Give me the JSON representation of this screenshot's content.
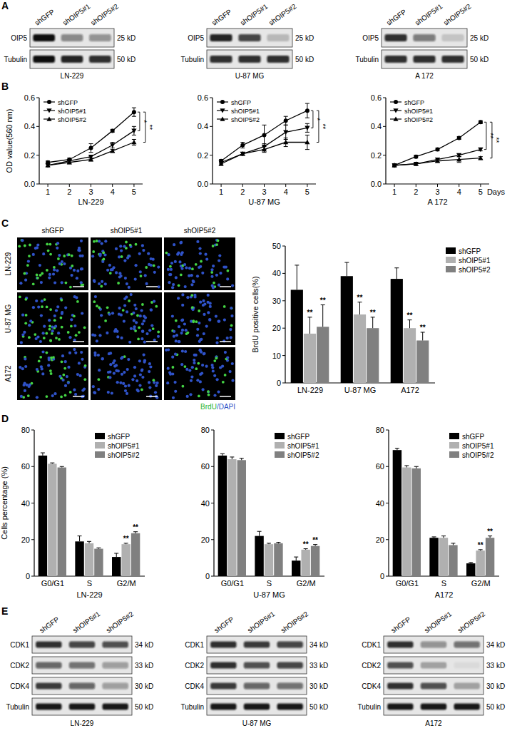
{
  "panel_labels": [
    "A",
    "B",
    "C",
    "D",
    "E"
  ],
  "panel_a": {
    "lanes": [
      "shGFP",
      "shOIP5#1",
      "shOIP5#2"
    ],
    "blots": [
      {
        "cell_line": "LN-229",
        "rows": [
          {
            "protein": "OIP5",
            "size": "25 kD",
            "intensity": [
              1,
              0.45,
              0.4
            ]
          },
          {
            "protein": "Tubulin",
            "size": "50 kD",
            "intensity": [
              1,
              0.9,
              0.85
            ]
          }
        ]
      },
      {
        "cell_line": "U-87 MG",
        "rows": [
          {
            "protein": "OIP5",
            "size": "25 kD",
            "intensity": [
              0.9,
              0.75,
              0.2
            ]
          },
          {
            "protein": "Tubulin",
            "size": "50 kD",
            "intensity": [
              0.85,
              0.85,
              0.85
            ]
          }
        ]
      },
      {
        "cell_line": "A 172",
        "rows": [
          {
            "protein": "OIP5",
            "size": "25 kD",
            "intensity": [
              0.85,
              0.5,
              0.15
            ]
          },
          {
            "protein": "Tubulin",
            "size": "50 kD",
            "intensity": [
              0.85,
              0.85,
              0.85
            ]
          }
        ]
      }
    ]
  },
  "panel_c_images": {
    "lanes": [
      "shGFP",
      "shOIP5#1",
      "shOIP5#2"
    ],
    "cell_lines": [
      "LN-229",
      "U-87 MG",
      "A172"
    ],
    "stain_label_parts": [
      "BrdU",
      "/DAPI"
    ]
  },
  "panel_e": {
    "lanes": [
      "shGFP",
      "shOIP5#1",
      "shOIP5#2"
    ],
    "blots": [
      {
        "cell_line": "LN-229",
        "rows": [
          {
            "protein": "CDK1",
            "size": "34 kD",
            "intensity": [
              0.85,
              0.75,
              0.7
            ]
          },
          {
            "protein": "CDK2",
            "size": "33 kD",
            "intensity": [
              0.6,
              0.55,
              0.35
            ]
          },
          {
            "protein": "CDK4",
            "size": "30 kD",
            "intensity": [
              0.8,
              0.6,
              0.35
            ]
          },
          {
            "protein": "Tubulin",
            "size": "50 kD",
            "intensity": [
              0.95,
              0.95,
              0.95
            ]
          }
        ]
      },
      {
        "cell_line": "U-87 MG",
        "rows": [
          {
            "protein": "CDK1",
            "size": "34 kD",
            "intensity": [
              0.85,
              0.8,
              0.75
            ]
          },
          {
            "protein": "CDK2",
            "size": "33 kD",
            "intensity": [
              0.85,
              0.7,
              0.75
            ]
          },
          {
            "protein": "CDK4",
            "size": "30 kD",
            "intensity": [
              0.8,
              0.6,
              0.55
            ]
          },
          {
            "protein": "Tubulin",
            "size": "50 kD",
            "intensity": [
              0.95,
              0.95,
              0.95
            ]
          }
        ]
      },
      {
        "cell_line": "A172",
        "rows": [
          {
            "protein": "CDK1",
            "size": "34 kD",
            "intensity": [
              0.85,
              0.4,
              0.55
            ]
          },
          {
            "protein": "CDK2",
            "size": "33 kD",
            "intensity": [
              0.7,
              0.3,
              0.05
            ]
          },
          {
            "protein": "CDK4",
            "size": "30 kD",
            "intensity": [
              0.85,
              0.7,
              0.3
            ]
          },
          {
            "protein": "Tubulin",
            "size": "50 kD",
            "intensity": [
              0.95,
              0.95,
              0.95
            ]
          }
        ]
      }
    ]
  },
  "chart_data": [
    {
      "type": "line",
      "y_label": "OD value(560 nm)",
      "x_label": "LN-229",
      "x": [
        1,
        2,
        3,
        4,
        5
      ],
      "xlim": [
        0.6,
        5.4
      ],
      "xticks": [
        1,
        2,
        3,
        4,
        5
      ],
      "ylim": [
        0,
        0.6
      ],
      "yticks": [
        {
          "value": 0,
          "label": "0.0"
        },
        {
          "value": 0.2,
          "label": "0.2"
        },
        {
          "value": 0.4,
          "label": "0.4"
        },
        {
          "value": 0.6,
          "label": "0.6"
        }
      ],
      "grid": false,
      "legend": "upper left",
      "series": [
        {
          "name": "shGFP",
          "color": "#000000",
          "marker": "circle",
          "values": [
            0.15,
            0.17,
            0.25,
            0.37,
            0.5
          ],
          "errors": [
            0.01,
            0.01,
            0.03,
            0.01,
            0.03
          ]
        },
        {
          "name": "shOIP5#1",
          "color": "#000000",
          "marker": "triangle-down",
          "values": [
            0.13,
            0.16,
            0.19,
            0.27,
            0.37
          ],
          "errors": [
            0.01,
            0.01,
            0.01,
            0.02,
            0.03
          ]
        },
        {
          "name": "shOIP5#2",
          "color": "#000000",
          "marker": "triangle-up",
          "values": [
            0.13,
            0.15,
            0.17,
            0.23,
            0.29
          ],
          "errors": [
            0.01,
            0.01,
            0.01,
            0.01,
            0.02
          ]
        }
      ],
      "significance": [
        {
          "between": [
            "shGFP",
            "shOIP5#1"
          ],
          "label": "*"
        },
        {
          "between": [
            "shGFP",
            "shOIP5#2"
          ],
          "label": "**"
        }
      ]
    },
    {
      "type": "line",
      "x_label": "U-87 MG",
      "x": [
        1,
        2,
        3,
        4,
        5
      ],
      "xlim": [
        0.6,
        5.4
      ],
      "xticks": [
        1,
        2,
        3,
        4,
        5
      ],
      "ylim": [
        0,
        0.6
      ],
      "yticks": [
        {
          "value": 0,
          "label": "0.0"
        },
        {
          "value": 0.2,
          "label": "0.2"
        },
        {
          "value": 0.4,
          "label": "0.4"
        },
        {
          "value": 0.6,
          "label": "0.6"
        }
      ],
      "grid": false,
      "legend": "upper left",
      "series": [
        {
          "name": "shGFP",
          "color": "#000000",
          "marker": "circle",
          "values": [
            0.16,
            0.27,
            0.34,
            0.44,
            0.51
          ],
          "errors": [
            0.01,
            0.02,
            0.07,
            0.03,
            0.05
          ]
        },
        {
          "name": "shOIP5#1",
          "color": "#000000",
          "marker": "triangle-down",
          "values": [
            0.15,
            0.21,
            0.26,
            0.36,
            0.39
          ],
          "errors": [
            0.01,
            0.01,
            0.02,
            0.05,
            0.03
          ]
        },
        {
          "name": "shOIP5#2",
          "color": "#000000",
          "marker": "triangle-up",
          "values": [
            0.14,
            0.21,
            0.24,
            0.29,
            0.29
          ],
          "errors": [
            0.01,
            0.01,
            0.02,
            0.03,
            0.05
          ]
        }
      ],
      "significance": [
        {
          "between": [
            "shGFP",
            "shOIP5#1"
          ],
          "label": "*"
        },
        {
          "between": [
            "shGFP",
            "shOIP5#2"
          ],
          "label": "**"
        }
      ]
    },
    {
      "type": "line",
      "x_label": "A 172",
      "annotations": [
        "Days"
      ],
      "x": [
        1,
        2,
        3,
        4,
        5
      ],
      "xlim": [
        0.6,
        5.4
      ],
      "xticks": [
        1,
        2,
        3,
        4,
        5
      ],
      "ylim": [
        0,
        0.6
      ],
      "yticks": [
        {
          "value": 0,
          "label": "0.0"
        },
        {
          "value": 0.2,
          "label": "0.2"
        },
        {
          "value": 0.4,
          "label": "0.4"
        },
        {
          "value": 0.6,
          "label": "0.6"
        }
      ],
      "grid": false,
      "legend": "upper left",
      "series": [
        {
          "name": "shGFP",
          "color": "#000000",
          "marker": "circle",
          "values": [
            0.13,
            0.19,
            0.24,
            0.32,
            0.43
          ],
          "errors": [
            0.01,
            0.01,
            0.01,
            0.01,
            0.01
          ]
        },
        {
          "name": "shOIP5#1",
          "color": "#000000",
          "marker": "triangle-down",
          "values": [
            0.13,
            0.14,
            0.17,
            0.2,
            0.24
          ],
          "errors": [
            0.01,
            0.01,
            0.01,
            0.01,
            0.01
          ]
        },
        {
          "name": "shOIP5#2",
          "color": "#000000",
          "marker": "triangle-up",
          "values": [
            0.13,
            0.14,
            0.16,
            0.17,
            0.18
          ],
          "errors": [
            0.01,
            0.01,
            0.01,
            0.02,
            0.01
          ]
        }
      ],
      "significance": [
        {
          "between": [
            "shGFP",
            "shOIP5#1"
          ],
          "label": "**"
        },
        {
          "between": [
            "shGFP",
            "shOIP5#2"
          ],
          "label": "**"
        }
      ]
    },
    {
      "type": "bar",
      "y_label": "BrdU positive cells(%)",
      "categories": [
        "LN-229",
        "U-87 MG",
        "A172"
      ],
      "ylim": [
        0,
        50
      ],
      "yticks": [
        0,
        10,
        20,
        30,
        40,
        50
      ],
      "grid": false,
      "legend": "right",
      "series": [
        {
          "name": "shGFP",
          "color": "#000000",
          "values": [
            34,
            39,
            38
          ],
          "errors": [
            9,
            5,
            4
          ]
        },
        {
          "name": "shOIP5#1",
          "color": "#b0b0b0",
          "values": [
            18,
            25,
            20
          ],
          "errors": [
            6,
            4.5,
            3
          ],
          "significance": [
            "**",
            "**",
            "**"
          ]
        },
        {
          "name": "shOIP5#2",
          "color": "#808080",
          "values": [
            20.5,
            20,
            15.5
          ],
          "errors": [
            8,
            4,
            3
          ],
          "significance": [
            "**",
            "**",
            "**"
          ]
        }
      ]
    },
    {
      "type": "bar",
      "y_label": "Cells percentage (%)",
      "x_label": "LN-229",
      "categories": [
        "G0/G1",
        "S",
        "G2/M"
      ],
      "ylim": [
        0,
        80
      ],
      "yticks": [
        0,
        20,
        40,
        60,
        80
      ],
      "grid": false,
      "legend": "upper right",
      "series": [
        {
          "name": "shGFP",
          "color": "#000000",
          "values": [
            66,
            19,
            10.5
          ],
          "errors": [
            1.5,
            3,
            2
          ]
        },
        {
          "name": "shOIP5#1",
          "color": "#b0b0b0",
          "values": [
            61.5,
            18,
            17.5
          ],
          "errors": [
            0.5,
            1,
            0.5
          ],
          "significance": [
            null,
            null,
            "**"
          ]
        },
        {
          "name": "shOIP5#2",
          "color": "#808080",
          "values": [
            59.5,
            15,
            23.5
          ],
          "errors": [
            0.5,
            0.5,
            0.8
          ],
          "significance": [
            null,
            null,
            "**"
          ]
        }
      ]
    },
    {
      "type": "bar",
      "x_label": "U-87 MG",
      "categories": [
        "G0/G1",
        "S",
        "G2/M"
      ],
      "ylim": [
        0,
        80
      ],
      "yticks": [
        0,
        20,
        40,
        60,
        80
      ],
      "grid": false,
      "legend": "upper right",
      "series": [
        {
          "name": "shGFP",
          "color": "#000000",
          "values": [
            66,
            22,
            8.5
          ],
          "errors": [
            1,
            2.5,
            2
          ]
        },
        {
          "name": "shOIP5#1",
          "color": "#b0b0b0",
          "values": [
            64,
            17.5,
            14.5
          ],
          "errors": [
            1.2,
            0.5,
            0.5
          ],
          "significance": [
            null,
            null,
            "**"
          ]
        },
        {
          "name": "shOIP5#2",
          "color": "#808080",
          "values": [
            63.5,
            18,
            16.5
          ],
          "errors": [
            1,
            0.5,
            0.8
          ],
          "significance": [
            null,
            null,
            "**"
          ]
        }
      ]
    },
    {
      "type": "bar",
      "x_label": "A172",
      "categories": [
        "G0/G1",
        "S",
        "G2/M"
      ],
      "ylim": [
        0,
        80
      ],
      "yticks": [
        0,
        20,
        40,
        60,
        80
      ],
      "grid": false,
      "legend": "upper right",
      "series": [
        {
          "name": "shGFP",
          "color": "#000000",
          "values": [
            69,
            21,
            7
          ],
          "errors": [
            1,
            0.5,
            0.5
          ]
        },
        {
          "name": "shOIP5#1",
          "color": "#b0b0b0",
          "values": [
            59.5,
            21,
            14
          ],
          "errors": [
            1,
            1,
            0.5
          ],
          "significance": [
            null,
            null,
            "**"
          ]
        },
        {
          "name": "shOIP5#2",
          "color": "#808080",
          "values": [
            59,
            17,
            21
          ],
          "errors": [
            1,
            1,
            1
          ],
          "significance": [
            null,
            null,
            "**"
          ]
        }
      ]
    }
  ]
}
